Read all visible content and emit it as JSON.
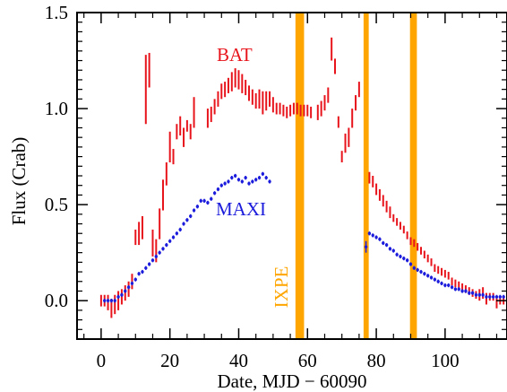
{
  "chart_data": {
    "type": "scatter",
    "title": "",
    "xlabel": "Date, MJD − 60090",
    "ylabel": "Flux (Crab)",
    "xlim": [
      -7,
      118
    ],
    "ylim": [
      -0.2,
      1.5
    ],
    "x_ticks": [
      0,
      20,
      40,
      60,
      80,
      100
    ],
    "x_tick_labels": [
      "0",
      "20",
      "40",
      "60",
      "80",
      "100"
    ],
    "y_ticks": [
      0.0,
      0.5,
      1.0,
      1.5
    ],
    "y_tick_labels": [
      "0.0",
      "0.5",
      "1.0",
      "1.5"
    ],
    "grid": false,
    "annotations": {
      "ixpe_label": "IXPE",
      "ixpe_color": "#FFA500",
      "ixpe_intervals": [
        [
          56.5,
          59.0
        ],
        [
          76.3,
          77.8
        ],
        [
          89.8,
          91.8
        ]
      ]
    },
    "series": [
      {
        "name": "BAT",
        "color": "#e8141c",
        "style": "vertical error bars",
        "points": [
          [
            0,
            0.0,
            0.03
          ],
          [
            1,
            0.0,
            0.03
          ],
          [
            2,
            -0.01,
            0.04
          ],
          [
            3,
            -0.04,
            0.05
          ],
          [
            4,
            -0.02,
            0.05
          ],
          [
            5,
            0.0,
            0.05
          ],
          [
            6,
            0.02,
            0.04
          ],
          [
            7,
            0.04,
            0.04
          ],
          [
            8,
            0.06,
            0.04
          ],
          [
            9,
            0.1,
            0.04
          ],
          [
            10,
            0.33,
            0.04
          ],
          [
            11,
            0.35,
            0.06
          ],
          [
            12,
            0.38,
            0.06
          ],
          [
            13,
            1.1,
            0.18
          ],
          [
            14,
            1.2,
            0.09
          ],
          [
            15,
            0.3,
            0.07
          ],
          [
            16,
            0.26,
            0.06
          ],
          [
            17,
            0.4,
            0.08
          ],
          [
            18,
            0.55,
            0.08
          ],
          [
            19,
            0.66,
            0.06
          ],
          [
            20,
            0.8,
            0.08
          ],
          [
            21,
            0.75,
            0.04
          ],
          [
            22,
            0.88,
            0.04
          ],
          [
            23,
            0.91,
            0.05
          ],
          [
            24,
            0.85,
            0.05
          ],
          [
            25,
            0.91,
            0.03
          ],
          [
            26,
            0.88,
            0.04
          ],
          [
            27,
            0.98,
            0.08
          ],
          [
            31,
            0.95,
            0.05
          ],
          [
            32,
            0.97,
            0.04
          ],
          [
            33,
            1.01,
            0.04
          ],
          [
            34,
            1.05,
            0.04
          ],
          [
            35,
            1.09,
            0.04
          ],
          [
            36,
            1.1,
            0.04
          ],
          [
            37,
            1.12,
            0.04
          ],
          [
            38,
            1.14,
            0.05
          ],
          [
            39,
            1.16,
            0.05
          ],
          [
            40,
            1.15,
            0.05
          ],
          [
            41,
            1.13,
            0.05
          ],
          [
            42,
            1.11,
            0.04
          ],
          [
            43,
            1.08,
            0.04
          ],
          [
            44,
            1.06,
            0.04
          ],
          [
            45,
            1.04,
            0.04
          ],
          [
            46,
            1.05,
            0.05
          ],
          [
            47,
            1.03,
            0.06
          ],
          [
            48,
            1.04,
            0.05
          ],
          [
            49,
            1.05,
            0.04
          ],
          [
            50,
            1.02,
            0.04
          ],
          [
            51,
            1.0,
            0.03
          ],
          [
            52,
            1.0,
            0.03
          ],
          [
            53,
            0.99,
            0.03
          ],
          [
            54,
            0.98,
            0.03
          ],
          [
            55,
            0.99,
            0.03
          ],
          [
            56,
            1.0,
            0.03
          ],
          [
            57,
            1.0,
            0.03
          ],
          [
            58,
            0.99,
            0.03
          ],
          [
            59,
            0.99,
            0.03
          ],
          [
            60,
            0.99,
            0.03
          ],
          [
            61,
            0.98,
            0.03
          ],
          [
            63,
            0.98,
            0.04
          ],
          [
            64,
            1.0,
            0.04
          ],
          [
            65,
            1.03,
            0.04
          ],
          [
            66,
            1.07,
            0.04
          ],
          [
            67,
            1.31,
            0.06
          ],
          [
            68,
            1.22,
            0.04
          ],
          [
            69,
            0.93,
            0.03
          ],
          [
            70,
            0.75,
            0.03
          ],
          [
            71,
            0.82,
            0.05
          ],
          [
            72,
            0.85,
            0.05
          ],
          [
            73,
            0.95,
            0.05
          ],
          [
            74,
            1.03,
            0.04
          ],
          [
            75,
            1.1,
            0.04
          ],
          [
            78,
            0.64,
            0.03
          ],
          [
            79,
            0.62,
            0.03
          ],
          [
            80,
            0.58,
            0.03
          ],
          [
            81,
            0.55,
            0.03
          ],
          [
            82,
            0.52,
            0.03
          ],
          [
            83,
            0.49,
            0.03
          ],
          [
            84,
            0.46,
            0.03
          ],
          [
            85,
            0.43,
            0.02
          ],
          [
            86,
            0.41,
            0.02
          ],
          [
            87,
            0.39,
            0.02
          ],
          [
            88,
            0.37,
            0.02
          ],
          [
            89,
            0.34,
            0.02
          ],
          [
            90,
            0.31,
            0.02
          ],
          [
            91,
            0.3,
            0.02
          ],
          [
            92,
            0.28,
            0.02
          ],
          [
            93,
            0.26,
            0.02
          ],
          [
            94,
            0.24,
            0.02
          ],
          [
            95,
            0.22,
            0.02
          ],
          [
            96,
            0.2,
            0.02
          ],
          [
            97,
            0.17,
            0.02
          ],
          [
            98,
            0.16,
            0.02
          ],
          [
            99,
            0.15,
            0.02
          ],
          [
            100,
            0.14,
            0.02
          ],
          [
            101,
            0.13,
            0.02
          ],
          [
            102,
            0.1,
            0.02
          ],
          [
            103,
            0.09,
            0.02
          ],
          [
            104,
            0.08,
            0.02
          ],
          [
            105,
            0.07,
            0.02
          ],
          [
            106,
            0.06,
            0.02
          ],
          [
            107,
            0.05,
            0.02
          ],
          [
            108,
            0.04,
            0.02
          ],
          [
            109,
            0.03,
            0.02
          ],
          [
            110,
            0.03,
            0.03
          ],
          [
            111,
            0.04,
            0.03
          ],
          [
            112,
            0.01,
            0.03
          ],
          [
            113,
            0.02,
            0.02
          ],
          [
            114,
            0.02,
            0.02
          ],
          [
            115,
            -0.01,
            0.03
          ],
          [
            116,
            0.0,
            0.02
          ],
          [
            117,
            0.0,
            0.02
          ]
        ]
      },
      {
        "name": "MAXI",
        "color": "#1c1cdc",
        "style": "small markers with short error bars",
        "points": [
          [
            1,
            0.0,
            0.01
          ],
          [
            2,
            0.0,
            0.01
          ],
          [
            3,
            0.0,
            0.01
          ],
          [
            4,
            0.0,
            0.01
          ],
          [
            5,
            0.02,
            0.01
          ],
          [
            6,
            0.03,
            0.01
          ],
          [
            7,
            0.05,
            0.01
          ],
          [
            8,
            0.07,
            0.01
          ],
          [
            9,
            0.09,
            0.01
          ],
          [
            10,
            0.11,
            0.01
          ],
          [
            11,
            0.14,
            0.01
          ],
          [
            12,
            0.15,
            0.01
          ],
          [
            13,
            0.17,
            0.01
          ],
          [
            14,
            0.19,
            0.01
          ],
          [
            15,
            0.21,
            0.01
          ],
          [
            16,
            0.23,
            0.01
          ],
          [
            17,
            0.25,
            0.01
          ],
          [
            18,
            0.27,
            0.01
          ],
          [
            19,
            0.29,
            0.01
          ],
          [
            20,
            0.31,
            0.01
          ],
          [
            21,
            0.33,
            0.01
          ],
          [
            22,
            0.35,
            0.01
          ],
          [
            23,
            0.37,
            0.01
          ],
          [
            24,
            0.4,
            0.01
          ],
          [
            25,
            0.42,
            0.01
          ],
          [
            26,
            0.44,
            0.01
          ],
          [
            27,
            0.47,
            0.01
          ],
          [
            28,
            0.49,
            0.01
          ],
          [
            29,
            0.52,
            0.01
          ],
          [
            30,
            0.52,
            0.01
          ],
          [
            31,
            0.51,
            0.01
          ],
          [
            32,
            0.53,
            0.01
          ],
          [
            33,
            0.56,
            0.01
          ],
          [
            34,
            0.58,
            0.01
          ],
          [
            35,
            0.6,
            0.01
          ],
          [
            36,
            0.61,
            0.01
          ],
          [
            37,
            0.62,
            0.01
          ],
          [
            38,
            0.64,
            0.01
          ],
          [
            39,
            0.65,
            0.01
          ],
          [
            40,
            0.63,
            0.01
          ],
          [
            41,
            0.62,
            0.01
          ],
          [
            42,
            0.64,
            0.01
          ],
          [
            43,
            0.61,
            0.01
          ],
          [
            44,
            0.62,
            0.01
          ],
          [
            45,
            0.63,
            0.01
          ],
          [
            46,
            0.64,
            0.01
          ],
          [
            47,
            0.66,
            0.01
          ],
          [
            48,
            0.64,
            0.01
          ],
          [
            49,
            0.62,
            0.01
          ],
          [
            77,
            0.28,
            0.03
          ],
          [
            78,
            0.35,
            0.01
          ],
          [
            79,
            0.34,
            0.01
          ],
          [
            80,
            0.33,
            0.01
          ],
          [
            81,
            0.32,
            0.01
          ],
          [
            82,
            0.3,
            0.01
          ],
          [
            83,
            0.29,
            0.01
          ],
          [
            84,
            0.27,
            0.01
          ],
          [
            85,
            0.26,
            0.01
          ],
          [
            86,
            0.24,
            0.01
          ],
          [
            87,
            0.23,
            0.01
          ],
          [
            88,
            0.22,
            0.01
          ],
          [
            89,
            0.21,
            0.01
          ],
          [
            90,
            0.19,
            0.01
          ],
          [
            91,
            0.17,
            0.01
          ],
          [
            92,
            0.16,
            0.01
          ],
          [
            93,
            0.15,
            0.01
          ],
          [
            94,
            0.14,
            0.01
          ],
          [
            95,
            0.13,
            0.01
          ],
          [
            96,
            0.12,
            0.01
          ],
          [
            97,
            0.11,
            0.01
          ],
          [
            98,
            0.1,
            0.01
          ],
          [
            99,
            0.09,
            0.01
          ],
          [
            100,
            0.08,
            0.01
          ],
          [
            101,
            0.08,
            0.01
          ],
          [
            102,
            0.07,
            0.01
          ],
          [
            103,
            0.06,
            0.01
          ],
          [
            104,
            0.06,
            0.01
          ],
          [
            105,
            0.05,
            0.01
          ],
          [
            106,
            0.05,
            0.01
          ],
          [
            107,
            0.04,
            0.01
          ],
          [
            108,
            0.04,
            0.01
          ],
          [
            109,
            0.03,
            0.01
          ],
          [
            110,
            0.03,
            0.01
          ],
          [
            111,
            0.03,
            0.01
          ],
          [
            112,
            0.02,
            0.01
          ],
          [
            113,
            0.02,
            0.01
          ],
          [
            114,
            0.02,
            0.01
          ],
          [
            115,
            0.02,
            0.01
          ],
          [
            116,
            0.02,
            0.01
          ],
          [
            117,
            0.02,
            0.01
          ]
        ]
      }
    ]
  }
}
